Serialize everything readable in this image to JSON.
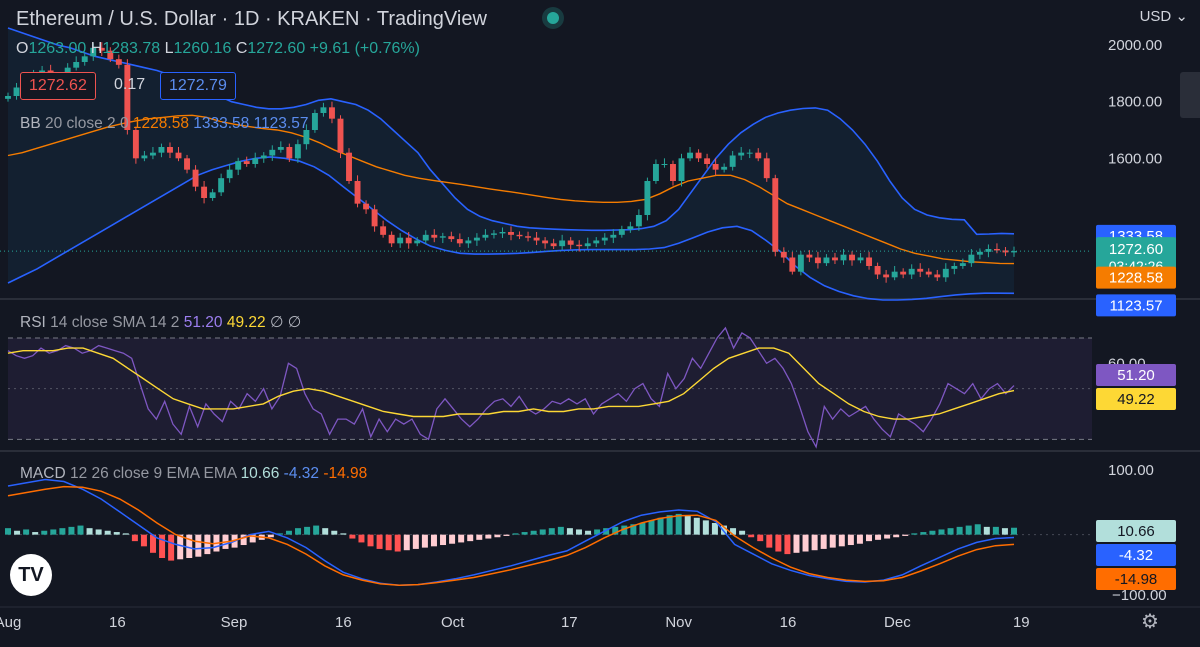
{
  "header": {
    "title": "Ethereum / U.S. Dollar · 1D · KRAKEN · TradingView",
    "currency": "USD",
    "ohlc": {
      "o_label": "O",
      "o": "1263.00",
      "h_label": "H",
      "h": "1283.78",
      "l_label": "L",
      "l": "1260.16",
      "c_label": "C",
      "c": "1272.60",
      "change": "+9.61 (+0.76%)"
    },
    "sell_price": "1272.62",
    "spread": "0.17",
    "buy_price": "1272.79"
  },
  "indicators": {
    "bb": {
      "name": "BB",
      "params": "20 close 2 0",
      "basis": "1228.58",
      "upper": "1333.58",
      "lower": "1123.57"
    },
    "rsi": {
      "name": "RSI",
      "params": "14 close SMA 14 2",
      "rsi": "51.20",
      "sma": "49.22",
      "extra": "∅ ∅"
    },
    "macd": {
      "name": "MACD",
      "params": "12 26 close 9 EMA EMA",
      "hist": "10.66",
      "macd": "-4.32",
      "signal": "-14.98"
    }
  },
  "colors": {
    "up": "#26a69a",
    "down": "#ef5350",
    "bb_band": "#2962ff",
    "bb_basis": "#f57c00",
    "rsi": "#7e57c2",
    "rsi_sma": "#fdd835",
    "macd": "#2962ff",
    "signal": "#ff6d00"
  },
  "chart_data": [
    {
      "type": "candlestick",
      "pane": "price",
      "ylim": [
        1100,
        2060
      ],
      "yticks": [
        2000,
        1800,
        1600
      ],
      "ytick_labels": [
        "2000.00",
        "1800.00",
        "1600.00"
      ],
      "series": [
        {
          "name": "price",
          "close": [
            1820,
            1850,
            1880,
            1900,
            1910,
            1880,
            1870,
            1920,
            1940,
            1960,
            1990,
            1980,
            1950,
            1930,
            1700,
            1600,
            1610,
            1620,
            1640,
            1620,
            1600,
            1560,
            1500,
            1460,
            1480,
            1530,
            1560,
            1590,
            1580,
            1600,
            1610,
            1630,
            1640,
            1600,
            1650,
            1700,
            1760,
            1780,
            1740,
            1620,
            1520,
            1440,
            1420,
            1360,
            1330,
            1300,
            1320,
            1300,
            1310,
            1330,
            1320,
            1325,
            1315,
            1300,
            1310,
            1320,
            1330,
            1335,
            1340,
            1330,
            1325,
            1320,
            1310,
            1300,
            1290,
            1310,
            1295,
            1290,
            1300,
            1310,
            1320,
            1330,
            1350,
            1360,
            1400,
            1520,
            1580,
            1580,
            1520,
            1600,
            1620,
            1600,
            1580,
            1560,
            1570,
            1610,
            1620,
            1620,
            1600,
            1530,
            1270,
            1250,
            1200,
            1260,
            1250,
            1230,
            1250,
            1240,
            1260,
            1240,
            1250,
            1220,
            1190,
            1180,
            1200,
            1190,
            1210,
            1200,
            1190,
            1180,
            1210,
            1220,
            1230,
            1260,
            1270,
            1280,
            1275,
            1268,
            1272.6
          ]
        },
        {
          "name": "BB upper",
          "values": [
            2060,
            2045,
            2030,
            2015,
            2000,
            1990,
            1975,
            1960,
            1950,
            1940,
            1930,
            1920,
            1910,
            1895,
            1880,
            1860,
            1840,
            1820,
            1800,
            1790,
            1780,
            1775,
            1775,
            1780,
            1790,
            1805,
            1810,
            1800,
            1790,
            1770,
            1740,
            1700,
            1660,
            1620,
            1560,
            1510,
            1460,
            1420,
            1395,
            1380,
            1370,
            1360,
            1355,
            1352,
            1350,
            1348,
            1347,
            1346,
            1346,
            1347,
            1348,
            1352,
            1360,
            1380,
            1420,
            1480,
            1540,
            1600,
            1650,
            1690,
            1720,
            1745,
            1760,
            1770,
            1776,
            1778,
            1770,
            1740,
            1700,
            1650,
            1590,
            1520,
            1460,
            1420,
            1400,
            1390,
            1385,
            1383,
            1332,
            1333,
            1335,
            1333.58
          ]
        },
        {
          "name": "BB basis",
          "values": [
            1610,
            1620,
            1635,
            1650,
            1665,
            1680,
            1695,
            1710,
            1722,
            1732,
            1740,
            1745,
            1750,
            1752,
            1745,
            1730,
            1720,
            1712,
            1705,
            1700,
            1690,
            1675,
            1655,
            1630,
            1610,
            1590,
            1570,
            1555,
            1540,
            1530,
            1522,
            1515,
            1508,
            1500,
            1492,
            1485,
            1478,
            1470,
            1462,
            1455,
            1450,
            1447,
            1445,
            1445,
            1448,
            1455,
            1475,
            1500,
            1520,
            1530,
            1540,
            1540,
            1525,
            1500,
            1470,
            1440,
            1420,
            1400,
            1380,
            1360,
            1340,
            1320,
            1300,
            1280,
            1265,
            1255,
            1245,
            1240,
            1235,
            1232,
            1229,
            1228.58
          ]
        },
        {
          "name": "BB lower",
          "values": [
            1160,
            1185,
            1210,
            1240,
            1270,
            1300,
            1330,
            1360,
            1390,
            1420,
            1450,
            1480,
            1510,
            1540,
            1560,
            1575,
            1590,
            1600,
            1605,
            1600,
            1590,
            1570,
            1540,
            1500,
            1460,
            1420,
            1380,
            1345,
            1315,
            1290,
            1275,
            1265,
            1262,
            1262,
            1263,
            1265,
            1268,
            1272,
            1275,
            1277,
            1278,
            1278,
            1278,
            1278,
            1280,
            1285,
            1300,
            1320,
            1340,
            1355,
            1360,
            1345,
            1310,
            1270,
            1220,
            1180,
            1150,
            1130,
            1115,
            1105,
            1100,
            1100,
            1102,
            1106,
            1112,
            1118,
            1122,
            1124,
            1124,
            1123.57
          ]
        }
      ]
    },
    {
      "type": "line",
      "pane": "RSI",
      "ylim": [
        25,
        85
      ],
      "yticks": [
        60
      ],
      "ytick_labels": [
        "60.00"
      ],
      "series": [
        {
          "name": "RSI",
          "values": [
            65,
            63,
            62,
            63,
            66,
            64,
            65,
            67,
            66,
            64,
            65,
            67,
            66,
            65,
            64,
            62,
            52,
            42,
            38,
            45,
            36,
            32,
            43,
            35,
            44,
            40,
            37,
            45,
            42,
            48,
            45,
            50,
            42,
            47,
            60,
            58,
            48,
            42,
            40,
            32,
            38,
            38,
            36,
            42,
            31,
            38,
            33,
            38,
            36,
            38,
            32,
            30,
            42,
            46,
            42,
            38,
            35,
            38,
            42,
            45,
            46,
            43,
            47,
            42,
            40,
            42,
            45,
            44,
            46,
            44,
            46,
            40,
            44,
            46,
            48,
            45,
            50,
            52,
            46,
            43,
            56,
            50,
            54,
            62,
            58,
            64,
            70,
            74,
            66,
            72,
            70,
            65,
            60,
            62,
            58,
            52,
            43,
            33,
            27,
            43,
            38,
            42,
            39,
            41,
            43,
            38,
            34,
            31,
            40,
            38,
            36,
            33,
            38,
            44,
            52,
            50,
            48,
            52,
            46,
            50,
            52,
            48,
            51.2
          ]
        },
        {
          "name": "RSI-based MA",
          "values": [
            64,
            65,
            65,
            65,
            66,
            66,
            64,
            62,
            58,
            54,
            50,
            46,
            44,
            42,
            42,
            42,
            43,
            44,
            47,
            49,
            50,
            49,
            47,
            45,
            43,
            41,
            40,
            39,
            39,
            39,
            40,
            40,
            40,
            41,
            41,
            42,
            41,
            41,
            42,
            42,
            43,
            43,
            43,
            44,
            45,
            48,
            53,
            58,
            62,
            64,
            66,
            66,
            64,
            58,
            52,
            48,
            44,
            41,
            39,
            38,
            38,
            39,
            40,
            42,
            44,
            46,
            48,
            49.22
          ]
        }
      ]
    },
    {
      "type": "bar",
      "pane": "MACD",
      "ylim": [
        -110,
        112
      ],
      "yticks": [
        100
      ],
      "ytick_labels": [
        "100.00"
      ],
      "series": [
        {
          "name": "Histogram",
          "values": [
            10,
            6,
            8,
            4,
            6,
            8,
            10,
            12,
            14,
            10,
            8,
            6,
            4,
            2,
            -10,
            -18,
            -28,
            -36,
            -40,
            -38,
            -36,
            -34,
            -30,
            -26,
            -22,
            -20,
            -16,
            -12,
            -8,
            -4,
            2,
            6,
            10,
            12,
            14,
            10,
            6,
            2,
            -6,
            -12,
            -18,
            -22,
            -24,
            -26,
            -24,
            -22,
            -20,
            -18,
            -16,
            -14,
            -12,
            -10,
            -8,
            -6,
            -4,
            -2,
            2,
            4,
            6,
            8,
            10,
            12,
            10,
            8,
            6,
            8,
            10,
            12,
            14,
            16,
            18,
            22,
            26,
            30,
            32,
            30,
            26,
            22,
            18,
            14,
            10,
            6,
            -4,
            -10,
            -20,
            -26,
            -30,
            -28,
            -26,
            -24,
            -22,
            -20,
            -18,
            -16,
            -14,
            -10,
            -8,
            -6,
            -4,
            -2,
            2,
            4,
            6,
            8,
            10,
            12,
            14,
            16,
            12,
            12,
            10,
            10.66
          ]
        },
        {
          "name": "MACD",
          "values": [
            75,
            80,
            85,
            82,
            70,
            55,
            35,
            15,
            -5,
            -15,
            -22,
            -20,
            -12,
            0,
            5,
            -5,
            -20,
            -40,
            -58,
            -68,
            -75,
            -78,
            -77,
            -73,
            -68,
            -62,
            -55,
            -48,
            -40,
            -32,
            -25,
            -10,
            5,
            20,
            30,
            35,
            38,
            36,
            20,
            -15,
            -30,
            -45,
            -55,
            -63,
            -68,
            -72,
            -73,
            -70,
            -62,
            -48,
            -35,
            -22,
            -12,
            -6,
            -4.32
          ]
        },
        {
          "name": "Signal",
          "values": [
            60,
            65,
            70,
            74,
            73,
            67,
            55,
            38,
            18,
            0,
            -10,
            -14,
            -10,
            -2,
            -5,
            -15,
            -30,
            -48,
            -62,
            -70,
            -76,
            -78,
            -77,
            -74,
            -70,
            -66,
            -60,
            -54,
            -47,
            -40,
            -32,
            -20,
            -5,
            8,
            18,
            25,
            29,
            30,
            22,
            -2,
            -20,
            -36,
            -50,
            -60,
            -66,
            -70,
            -72,
            -71,
            -66,
            -56,
            -45,
            -33,
            -23,
            -17,
            -14.98
          ]
        }
      ]
    },
    {
      "type": "time-axis",
      "ticks": [
        {
          "label": "Aug",
          "pos": 0
        },
        {
          "label": "16",
          "pos": 15
        },
        {
          "label": "Sep",
          "pos": 31
        },
        {
          "label": "16",
          "pos": 46
        },
        {
          "label": "Oct",
          "pos": 61
        },
        {
          "label": "17",
          "pos": 77
        },
        {
          "label": "Nov",
          "pos": 92
        },
        {
          "label": "16",
          "pos": 107
        },
        {
          "label": "Dec",
          "pos": 122
        },
        {
          "label": "19",
          "pos": 139
        }
      ]
    }
  ]
}
